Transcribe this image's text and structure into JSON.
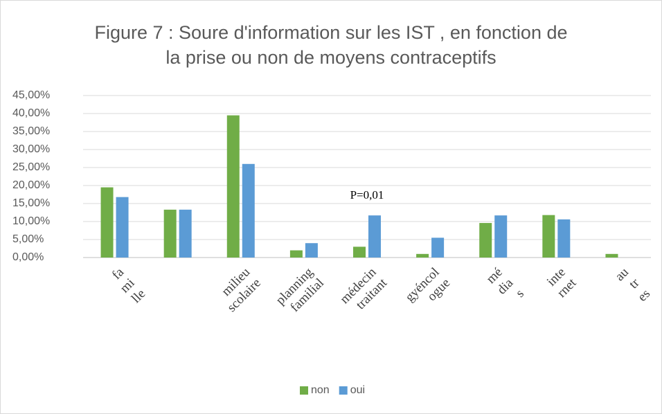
{
  "chart_data": {
    "type": "bar",
    "title": "Figure 7 : Soure d'information sur les IST , en fonction de\nla prise ou non de moyens contraceptifs",
    "categories": [
      "fa\nmi\nlle",
      null,
      "milieu\nscolaire",
      "planning\nfamilial",
      "médecin\ntraitant",
      "gyéncol\nogue",
      "mé\ndia\ns",
      "inte\nrnet",
      "au\ntr\nes"
    ],
    "series": [
      {
        "name": "non",
        "color": "#70ad47",
        "values": [
          19.5,
          13.3,
          39.5,
          2.0,
          3.0,
          1.0,
          9.6,
          11.8,
          1.0
        ]
      },
      {
        "name": "oui",
        "color": "#5b9bd5",
        "values": [
          16.8,
          13.3,
          26.0,
          4.0,
          11.7,
          5.5,
          11.7,
          10.6,
          0
        ]
      }
    ],
    "ylim": [
      0,
      45
    ],
    "yticks": [
      {
        "value": 0,
        "label": "0,00%"
      },
      {
        "value": 5,
        "label": "5,00%"
      },
      {
        "value": 10,
        "label": "10,00%"
      },
      {
        "value": 15,
        "label": "15,00%"
      },
      {
        "value": 20,
        "label": "20,00%"
      },
      {
        "value": 25,
        "label": "25,00%"
      },
      {
        "value": 30,
        "label": "30,00%"
      },
      {
        "value": 35,
        "label": "35,00%"
      },
      {
        "value": 40,
        "label": "40,00%"
      },
      {
        "value": 45,
        "label": "45,00%"
      }
    ],
    "grid": true,
    "legend": "bottom",
    "annotations": [
      {
        "text": "P=0,01",
        "category": 4
      }
    ]
  }
}
